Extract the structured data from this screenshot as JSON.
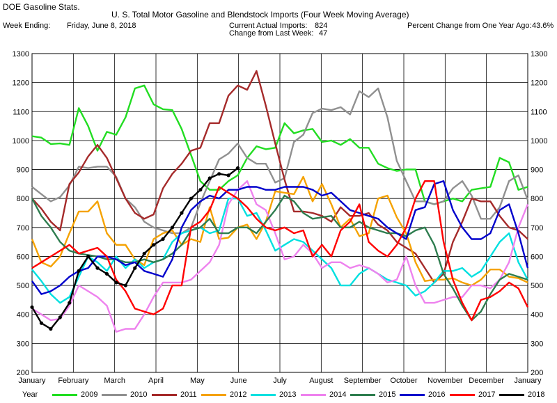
{
  "header": {
    "app": "DOE Gasoline Stats.",
    "title": "U. S. Total Motor Gasoline and Blendstock Imports (Four Week Moving Average)",
    "week_label": "Week Ending:",
    "week_date": "Friday, June 8, 2018",
    "current_label": "Current Actual Imports:",
    "current_value": "824",
    "change_label": "Change from Last Week:",
    "change_value": "47",
    "pct_label": "Percent Change from One Year Ago:",
    "pct_value": "43.6%"
  },
  "legend_label": "Year",
  "chart_data": {
    "type": "line",
    "x_ticks": [
      "January",
      "February",
      "March",
      "April",
      "May",
      "June",
      "July",
      "August",
      "September",
      "October",
      "November",
      "December",
      "January"
    ],
    "ylim": [
      200,
      1300
    ],
    "y_ticks": [
      200,
      300,
      400,
      500,
      600,
      700,
      800,
      900,
      1000,
      1100,
      1200,
      1300
    ],
    "grid": true,
    "series": [
      {
        "name": "2009",
        "color": "#22dd22",
        "values": [
          1015,
          1010,
          988,
          990,
          985,
          1112,
          1050,
          965,
          1030,
          1020,
          1080,
          1180,
          1190,
          1125,
          1108,
          1105,
          1040,
          950,
          860,
          830,
          830,
          860,
          880,
          940,
          980,
          970,
          975,
          1060,
          1025,
          1035,
          1040,
          995,
          1000,
          985,
          1005,
          975,
          975,
          920,
          905,
          895,
          900,
          900,
          790,
          780,
          790,
          800,
          790,
          830,
          835,
          840,
          940,
          925,
          830,
          840
        ]
      },
      {
        "name": "2010",
        "color": "#909090",
        "values": [
          840,
          815,
          790,
          805,
          845,
          910,
          905,
          910,
          910,
          875,
          800,
          770,
          720,
          700,
          690,
          680,
          680,
          700,
          785,
          860,
          935,
          955,
          990,
          940,
          920,
          920,
          855,
          870,
          995,
          1020,
          1095,
          1110,
          1105,
          1115,
          1090,
          1170,
          1150,
          1180,
          1080,
          930,
          860,
          790,
          790,
          780,
          790,
          835,
          860,
          810,
          730,
          730,
          770,
          860,
          880,
          795
        ]
      },
      {
        "name": "2011",
        "color": "#a52a2a",
        "values": [
          800,
          765,
          720,
          690,
          850,
          890,
          945,
          985,
          940,
          870,
          800,
          750,
          730,
          745,
          835,
          885,
          920,
          965,
          975,
          1060,
          1060,
          1155,
          1190,
          1175,
          1240,
          1120,
          990,
          865,
          755,
          755,
          750,
          740,
          720,
          770,
          740,
          740,
          750,
          710,
          690,
          650,
          630,
          610,
          560,
          510,
          540,
          650,
          720,
          800,
          790,
          790,
          740,
          700,
          690,
          660
        ]
      },
      {
        "name": "2012",
        "color": "#f5a200",
        "values": [
          660,
          580,
          565,
          600,
          680,
          755,
          755,
          790,
          680,
          640,
          640,
          590,
          570,
          660,
          680,
          690,
          640,
          660,
          650,
          770,
          660,
          665,
          700,
          710,
          660,
          720,
          825,
          820,
          815,
          875,
          790,
          850,
          780,
          700,
          730,
          670,
          680,
          800,
          810,
          735,
          680,
          580,
          515,
          520,
          520,
          525,
          510,
          500,
          520,
          555,
          555,
          530,
          525,
          510
        ]
      },
      {
        "name": "2013",
        "color": "#00e0e0",
        "values": [
          555,
          515,
          470,
          440,
          460,
          530,
          600,
          580,
          550,
          600,
          560,
          590,
          560,
          580,
          590,
          650,
          680,
          690,
          700,
          680,
          690,
          800,
          800,
          740,
          750,
          690,
          620,
          640,
          660,
          650,
          620,
          590,
          560,
          500,
          500,
          540,
          560,
          540,
          520,
          510,
          500,
          465,
          480,
          510,
          550,
          550,
          560,
          530,
          550,
          600,
          650,
          680,
          580,
          520
        ]
      },
      {
        "name": "2014",
        "color": "#ee82ee",
        "values": [
          420,
          400,
          380,
          385,
          430,
          500,
          480,
          460,
          430,
          340,
          350,
          350,
          400,
          460,
          510,
          510,
          510,
          520,
          550,
          580,
          640,
          780,
          830,
          860,
          780,
          760,
          680,
          590,
          600,
          640,
          610,
          560,
          580,
          580,
          560,
          570,
          560,
          540,
          510,
          520,
          600,
          500,
          440,
          440,
          450,
          460,
          460,
          500,
          500,
          490,
          520,
          580,
          700,
          780
        ]
      },
      {
        "name": "2015",
        "color": "#2e7d4f",
        "values": [
          800,
          740,
          700,
          650,
          620,
          610,
          605,
          600,
          590,
          590,
          580,
          580,
          590,
          580,
          590,
          610,
          640,
          690,
          700,
          730,
          680,
          680,
          700,
          700,
          680,
          720,
          760,
          810,
          790,
          750,
          730,
          735,
          740,
          700,
          700,
          720,
          700,
          690,
          680,
          680,
          670,
          690,
          700,
          640,
          540,
          490,
          430,
          380,
          410,
          470,
          520,
          540,
          530,
          520
        ]
      },
      {
        "name": "2016",
        "color": "#0000cc",
        "values": [
          515,
          470,
          480,
          500,
          530,
          550,
          560,
          600,
          600,
          590,
          570,
          580,
          550,
          540,
          530,
          590,
          700,
          760,
          790,
          810,
          800,
          830,
          830,
          840,
          840,
          830,
          830,
          840,
          840,
          840,
          830,
          810,
          820,
          790,
          760,
          750,
          740,
          730,
          700,
          680,
          660,
          760,
          770,
          850,
          860,
          760,
          700,
          660,
          660,
          680,
          760,
          780,
          680,
          560
        ]
      },
      {
        "name": "2017",
        "color": "#ff0000",
        "values": [
          560,
          580,
          600,
          620,
          640,
          610,
          620,
          630,
          600,
          520,
          480,
          420,
          410,
          400,
          420,
          500,
          500,
          700,
          720,
          760,
          840,
          820,
          800,
          770,
          730,
          700,
          690,
          700,
          680,
          690,
          600,
          640,
          600,
          690,
          720,
          780,
          650,
          620,
          600,
          640,
          700,
          800,
          860,
          860,
          650,
          520,
          440,
          380,
          450,
          460,
          480,
          510,
          490,
          425
        ]
      },
      {
        "name": "2018",
        "color": "#000000",
        "values": [
          425,
          370,
          350,
          390,
          440,
          550,
          600,
          560,
          540,
          510,
          500,
          560,
          610,
          640,
          660,
          700,
          750,
          800,
          830,
          870,
          885,
          880,
          905
        ]
      }
    ]
  }
}
